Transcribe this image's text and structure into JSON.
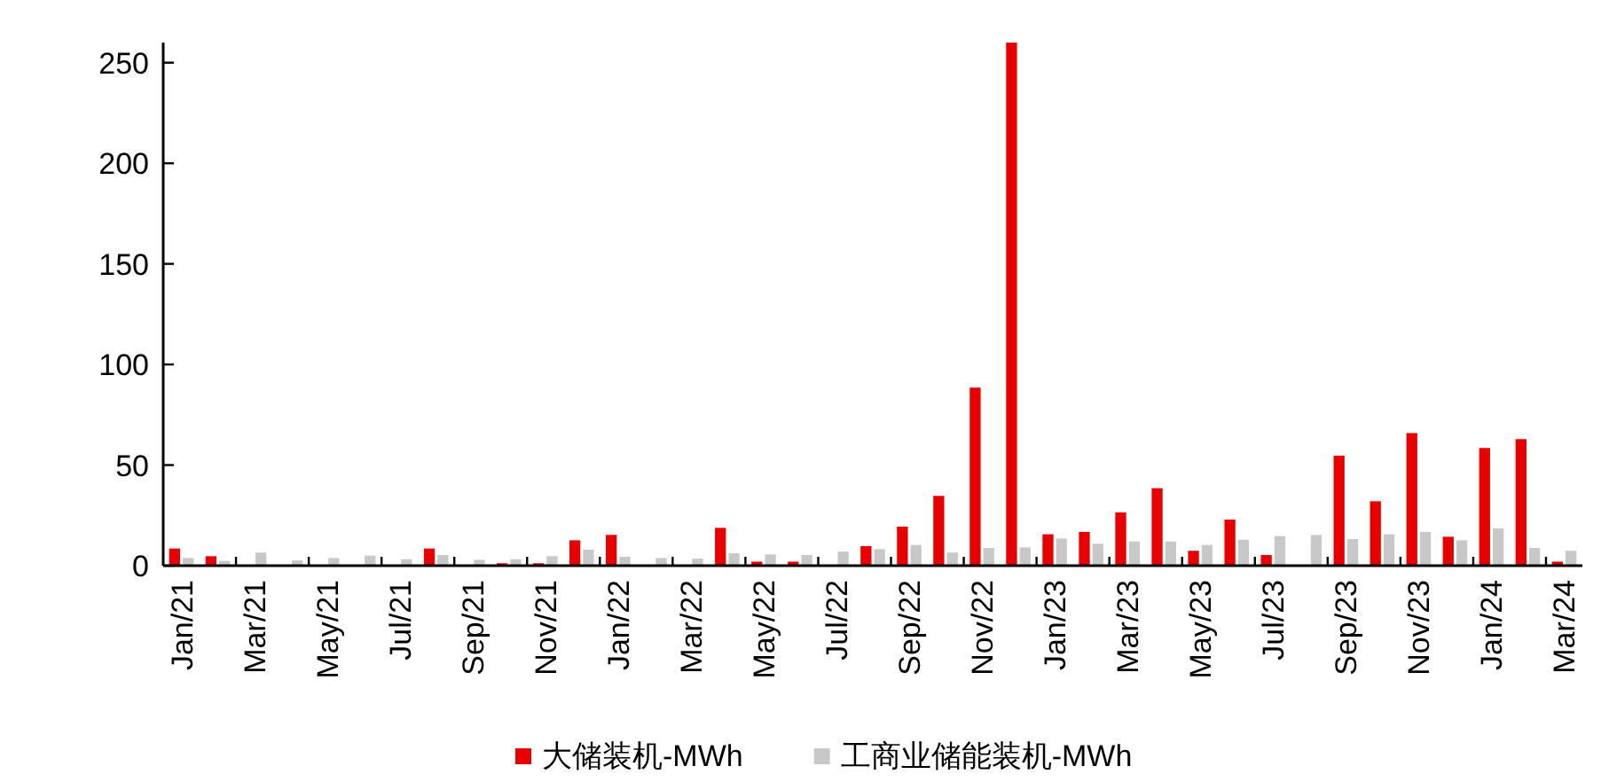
{
  "chart_data": {
    "type": "bar",
    "categories": [
      "Jan/21",
      null,
      "Mar/21",
      null,
      "May/21",
      null,
      "Jul/21",
      null,
      "Sep/21",
      null,
      "Nov/21",
      null,
      "Jan/22",
      null,
      "Mar/22",
      null,
      "May/22",
      null,
      "Jul/22",
      null,
      "Sep/22",
      null,
      "Nov/22",
      null,
      "Jan/23",
      null,
      "Mar/23",
      null,
      "May/23",
      null,
      "Jul/23",
      null,
      "Sep/23",
      null,
      "Nov/23",
      null,
      "Jan/24",
      null,
      "Mar/24"
    ],
    "series": [
      {
        "name": "大储装机-MWh",
        "color": "#e60000",
        "values": [
          8.5,
          4.7,
          null,
          null,
          null,
          null,
          null,
          8.5,
          null,
          1.2,
          1.2,
          12.6,
          15.3,
          null,
          null,
          18.8,
          2,
          2,
          0.3,
          9.7,
          19.4,
          34.7,
          88.5,
          260,
          15.6,
          16.8,
          26.5,
          38.5,
          7.4,
          22.9,
          5.3,
          null,
          54.7,
          32,
          65.9,
          14.4,
          58.5,
          62.9,
          2
        ]
      },
      {
        "name": "工商业储能装机-MWh",
        "color": "#c8c8c8",
        "values": [
          3.8,
          2.4,
          6.5,
          2.6,
          3.8,
          5,
          3.2,
          5.3,
          2.9,
          3.2,
          4.7,
          7.9,
          4.4,
          3.8,
          3.5,
          6.2,
          5.6,
          5.3,
          7,
          8.2,
          10.3,
          6.5,
          8.8,
          9.1,
          13.5,
          10.9,
          12,
          12,
          10.3,
          12.9,
          14.7,
          15.3,
          13.2,
          15.6,
          16.8,
          12.6,
          18.5,
          8.8,
          7.4
        ]
      }
    ],
    "ylim": [
      0,
      260
    ],
    "yticks": [
      0,
      50,
      100,
      150,
      200,
      250
    ],
    "grid": false,
    "legend": "bottom"
  }
}
